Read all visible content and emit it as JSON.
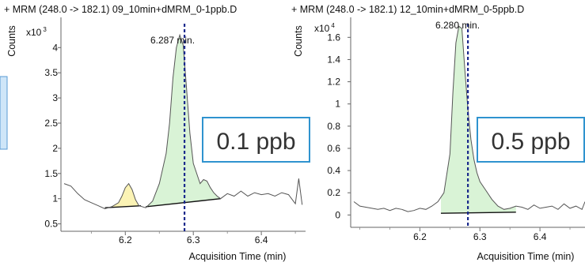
{
  "chart_data": [
    {
      "type": "line",
      "title": "+ MRM (248.0 -> 182.1) 09_10min+dMRM_0-1ppb.D",
      "ylabel": "Counts",
      "y_exponent_label": "x10",
      "y_exponent_power": "3",
      "xlabel": "Acquisition Time (min)",
      "xlim": [
        6.11,
        6.465
      ],
      "ylim": [
        0.4,
        4.6
      ],
      "x_ticks": [
        6.2,
        6.3,
        6.4
      ],
      "x_tick_labels": [
        "6.2",
        "6.3",
        "6.4"
      ],
      "y_ticks": [
        0.5,
        1,
        1.5,
        2,
        2.5,
        3,
        3.5,
        4
      ],
      "y_tick_labels": [
        "0.5",
        "1",
        "1.5",
        "2",
        "2.5",
        "3",
        "3.5",
        "4"
      ],
      "retention_time": 6.287,
      "retention_label": "6.287 min.",
      "concentration_label": "0.1 ppb",
      "series": [
        {
          "x": [
            6.11,
            6.12,
            6.13,
            6.14,
            6.15,
            6.16,
            6.17,
            6.18,
            6.19,
            6.195,
            6.2,
            6.205,
            6.21,
            6.215,
            6.22,
            6.23,
            6.24,
            6.25,
            6.26,
            6.265,
            6.27,
            6.275,
            6.28,
            6.285,
            6.29,
            6.295,
            6.3,
            6.31,
            6.315,
            6.32,
            6.325,
            6.33,
            6.335,
            6.34,
            6.35,
            6.36,
            6.37,
            6.38,
            6.39,
            6.4,
            6.41,
            6.42,
            6.43,
            6.44,
            6.45,
            6.455,
            6.46
          ],
          "y": [
            1.3,
            1.25,
            1.1,
            0.98,
            0.92,
            0.86,
            0.8,
            0.84,
            0.92,
            1.05,
            1.22,
            1.3,
            1.18,
            0.98,
            0.86,
            0.82,
            0.95,
            1.3,
            1.9,
            2.5,
            3.4,
            4.0,
            4.25,
            4.05,
            3.2,
            2.3,
            1.7,
            1.3,
            1.38,
            1.35,
            1.22,
            1.12,
            1.05,
            1.0,
            1.1,
            1.05,
            1.15,
            1.05,
            1.12,
            1.08,
            1.1,
            1.05,
            1.12,
            1.08,
            0.9,
            1.4,
            0.88
          ]
        }
      ],
      "peaks": [
        {
          "x_start": 6.17,
          "x_end": 6.223,
          "baseline_start": 0.82,
          "baseline_end": 0.86,
          "fill": "#fbf3b5"
        },
        {
          "x_start": 6.23,
          "x_end": 6.34,
          "baseline_start": 0.84,
          "baseline_end": 1.0,
          "fill": "#d9f3d6"
        }
      ]
    },
    {
      "type": "line",
      "title": "+ MRM (248.0 -> 182.1) 12_10min+dMRM_0-5ppb.D",
      "ylabel": "Counts",
      "y_exponent_label": "x10",
      "y_exponent_power": "4",
      "xlabel": "Acquisition Time (min)",
      "xlim": [
        6.09,
        6.475
      ],
      "ylim": [
        -0.09,
        1.78
      ],
      "x_ticks": [
        6.2,
        6.3,
        6.4
      ],
      "x_tick_labels": [
        "6.2",
        "6.3",
        "6.4"
      ],
      "y_ticks": [
        0,
        0.2,
        0.4,
        0.6,
        0.8,
        1,
        1.2,
        1.4,
        1.6
      ],
      "y_tick_labels": [
        "0",
        "0.2",
        "0.4",
        "0.6",
        "0.8",
        "1",
        "1.2",
        "1.4",
        "1.6"
      ],
      "retention_time": 6.28,
      "retention_label": "6.280 min.",
      "concentration_label": "0.5 ppb",
      "series": [
        {
          "x": [
            6.09,
            6.1,
            6.11,
            6.12,
            6.13,
            6.14,
            6.15,
            6.16,
            6.17,
            6.18,
            6.19,
            6.2,
            6.21,
            6.22,
            6.23,
            6.24,
            6.25,
            6.255,
            6.26,
            6.265,
            6.27,
            6.275,
            6.28,
            6.285,
            6.29,
            6.295,
            6.3,
            6.31,
            6.32,
            6.33,
            6.34,
            6.35,
            6.36,
            6.37,
            6.38,
            6.39,
            6.4,
            6.41,
            6.42,
            6.43,
            6.44,
            6.45,
            6.46,
            6.47,
            6.475
          ],
          "y": [
            0.12,
            0.08,
            0.07,
            0.06,
            0.05,
            0.06,
            0.04,
            0.06,
            0.05,
            0.03,
            0.04,
            0.06,
            0.05,
            0.08,
            0.12,
            0.2,
            0.55,
            1.1,
            1.55,
            1.7,
            1.68,
            1.3,
            0.95,
            0.68,
            0.5,
            0.38,
            0.3,
            0.22,
            0.14,
            0.08,
            0.05,
            0.06,
            0.08,
            0.07,
            0.05,
            0.09,
            0.06,
            0.07,
            0.08,
            0.05,
            0.1,
            0.06,
            0.08,
            0.05,
            0.12
          ]
        }
      ],
      "peaks": [
        {
          "x_start": 6.235,
          "x_end": 6.36,
          "baseline_start": 0.015,
          "baseline_end": 0.025,
          "fill": "#d9f3d6"
        }
      ]
    }
  ],
  "colors": {
    "trace": "#555555",
    "baseline": "#111111",
    "rt_line": "#1b2a8c",
    "box_border": "#2f93cf",
    "left_stub_fill": "#cfe6f8",
    "left_stub_border": "#5a9bd3"
  }
}
